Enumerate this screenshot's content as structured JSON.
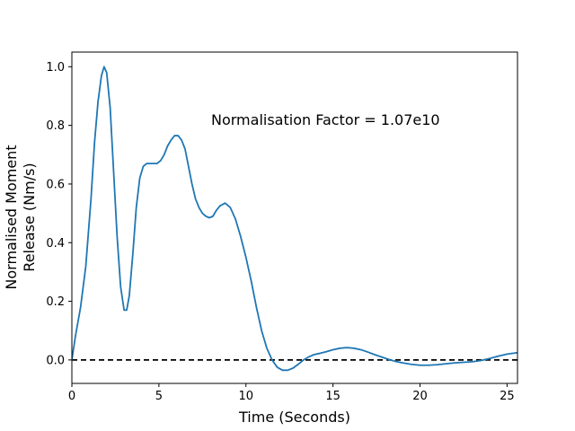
{
  "chart_data": {
    "type": "line",
    "title": "",
    "xlabel": "Time (Seconds)",
    "ylabel_lines": [
      "Normalised Moment",
      "Release (Nm/s)"
    ],
    "annotation": "Normalisation Factor = 1.07e10",
    "xlim": [
      0,
      25.6
    ],
    "ylim": [
      -0.08,
      1.05
    ],
    "xticks": [
      0,
      5,
      10,
      15,
      20,
      25
    ],
    "yticks": [
      0.0,
      0.2,
      0.4,
      0.6,
      0.8,
      1.0
    ],
    "xtick_labels": [
      "0",
      "5",
      "10",
      "15",
      "20",
      "25"
    ],
    "ytick_labels": [
      "0.0",
      "0.2",
      "0.4",
      "0.6",
      "0.8",
      "1.0"
    ],
    "grid": false,
    "reference_line": {
      "y": 0.0,
      "style": "dashed",
      "color": "#000000"
    },
    "series": [
      {
        "color": "#1f77b4",
        "x": [
          0.0,
          0.2,
          0.5,
          0.8,
          1.1,
          1.3,
          1.5,
          1.7,
          1.85,
          2.0,
          2.2,
          2.4,
          2.6,
          2.8,
          3.0,
          3.15,
          3.3,
          3.5,
          3.7,
          3.9,
          4.1,
          4.3,
          4.5,
          4.7,
          4.9,
          5.1,
          5.3,
          5.5,
          5.7,
          5.9,
          6.1,
          6.3,
          6.5,
          6.7,
          6.9,
          7.1,
          7.3,
          7.5,
          7.7,
          7.9,
          8.1,
          8.3,
          8.5,
          8.8,
          9.1,
          9.4,
          9.7,
          10.0,
          10.3,
          10.6,
          10.9,
          11.2,
          11.5,
          11.8,
          12.1,
          12.4,
          12.7,
          13.0,
          13.3,
          13.6,
          13.9,
          14.2,
          14.6,
          15.0,
          15.4,
          15.8,
          16.2,
          16.6,
          17.0,
          17.4,
          17.8,
          18.2,
          18.6,
          19.0,
          19.5,
          20.0,
          20.5,
          21.0,
          21.5,
          22.0,
          22.5,
          23.0,
          23.5,
          24.0,
          24.5,
          25.0,
          25.6
        ],
        "y": [
          0.0,
          0.08,
          0.18,
          0.32,
          0.55,
          0.74,
          0.88,
          0.97,
          1.0,
          0.98,
          0.86,
          0.64,
          0.42,
          0.25,
          0.17,
          0.17,
          0.22,
          0.36,
          0.52,
          0.62,
          0.66,
          0.67,
          0.67,
          0.67,
          0.67,
          0.68,
          0.7,
          0.73,
          0.75,
          0.765,
          0.765,
          0.75,
          0.72,
          0.66,
          0.6,
          0.55,
          0.52,
          0.5,
          0.49,
          0.485,
          0.49,
          0.51,
          0.525,
          0.535,
          0.52,
          0.48,
          0.42,
          0.35,
          0.27,
          0.18,
          0.1,
          0.04,
          0.0,
          -0.025,
          -0.035,
          -0.035,
          -0.028,
          -0.015,
          0.0,
          0.01,
          0.018,
          0.022,
          0.028,
          0.035,
          0.04,
          0.042,
          0.04,
          0.035,
          0.027,
          0.018,
          0.01,
          0.002,
          -0.005,
          -0.01,
          -0.015,
          -0.018,
          -0.018,
          -0.016,
          -0.013,
          -0.01,
          -0.008,
          -0.006,
          -0.002,
          0.005,
          0.013,
          0.02,
          0.025
        ]
      }
    ]
  }
}
